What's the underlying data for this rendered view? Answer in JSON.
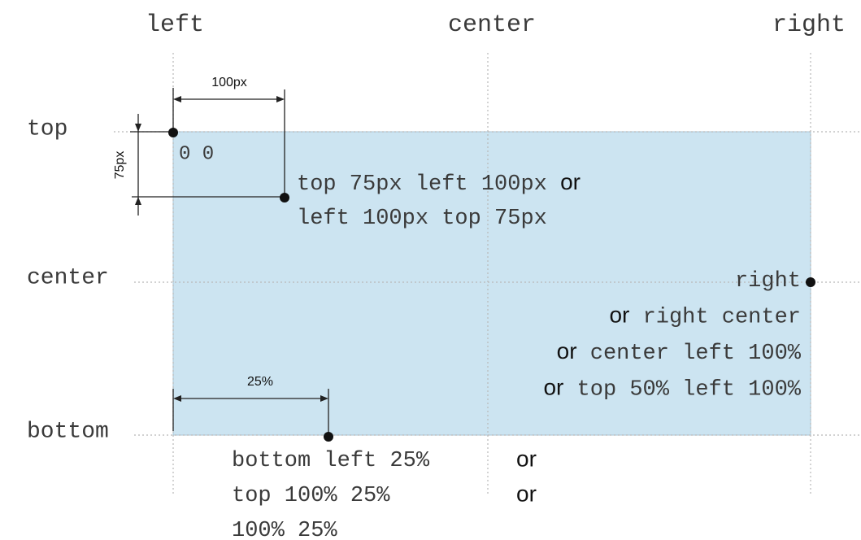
{
  "columns": [
    "left",
    "center",
    "right"
  ],
  "rows": [
    "top",
    "center",
    "bottom"
  ],
  "dimensions": {
    "horizontal": "100px",
    "vertical": "75px",
    "percent": "25%"
  },
  "origin": "0 0",
  "annotations": [
    {
      "lines": [
        {
          "code": "top 75px left 100px",
          "post": "or"
        },
        {
          "code": "left 100px top 75px"
        }
      ]
    },
    {
      "lines": [
        {
          "code": "right"
        },
        {
          "pre": "or",
          "code": "right center"
        },
        {
          "pre": "or",
          "code": "center left 100%"
        },
        {
          "pre": "or",
          "code": "top 50% left 100%"
        }
      ]
    },
    {
      "lines": [
        {
          "code": "bottom left 25%",
          "post": "or"
        },
        {
          "code": "top 100% 25%",
          "post": "or"
        },
        {
          "code": "100% 25%"
        }
      ]
    }
  ]
}
